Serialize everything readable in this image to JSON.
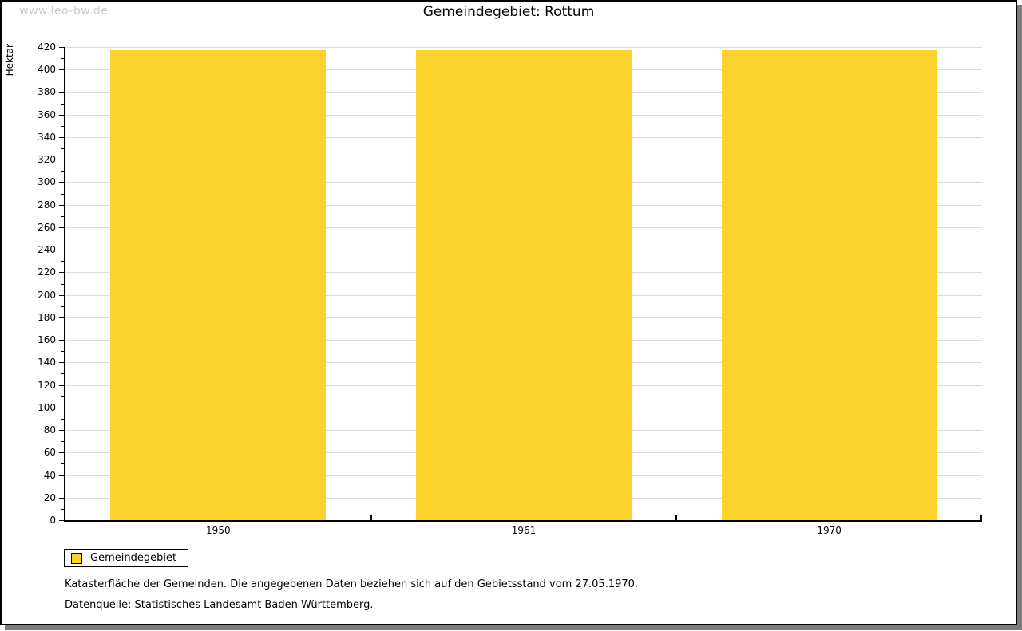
{
  "watermark": "www.leo-bw.de",
  "header": {
    "title": "Gemeindegebiet: Rottum"
  },
  "chart_data": {
    "type": "bar",
    "title": "Gemeindegebiet: Rottum",
    "ylabel": "Hektar",
    "xlabel": "",
    "categories": [
      "1950",
      "1961",
      "1970"
    ],
    "series": [
      {
        "name": "Gemeindegebiet",
        "color": "#FCD32C",
        "values": [
          417,
          417,
          417
        ]
      }
    ],
    "ylim": [
      0,
      420
    ],
    "ytick_major": 20,
    "ytick_minor": 10,
    "grid": "horizontal-major",
    "legend_position": "bottom-left"
  },
  "legend": {
    "items": [
      {
        "label": "Gemeindegebiet",
        "color": "#FCD32C"
      }
    ]
  },
  "notes": {
    "line1": "Katasterfläche der Gemeinden. Die angegebenen Daten beziehen sich auf den Gebietsstand vom 27.05.1970.",
    "line2": "Datenquelle: Statistisches Landesamt Baden-Württemberg."
  },
  "colors": {
    "bar": "#FCD32C",
    "grid": "#DCDCDC",
    "axis": "#000000",
    "text": "#000000",
    "watermark": "#C9C9C9",
    "frame_shadow": "#7D7D7D"
  }
}
